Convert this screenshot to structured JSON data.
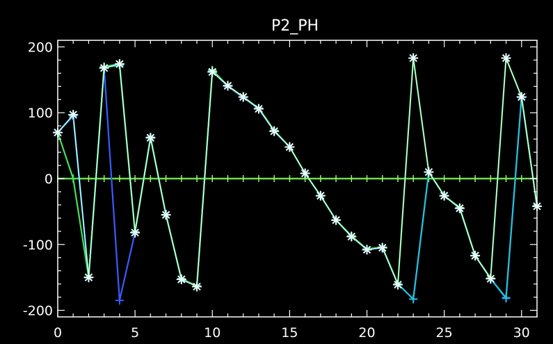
{
  "chart_data": {
    "type": "line",
    "title": "P2_PH",
    "xlabel": "",
    "ylabel": "",
    "xlim": [
      0,
      31
    ],
    "ylim": [
      -210,
      210
    ],
    "x_ticks": [
      0,
      5,
      10,
      15,
      20,
      25,
      30
    ],
    "y_ticks": [
      200,
      100,
      0,
      -100,
      -200
    ],
    "zero_line": true,
    "grid": false,
    "background": "#000000",
    "axis_color": "#ffffff",
    "x": [
      0,
      1,
      2,
      3,
      4,
      5,
      6,
      7,
      8,
      9,
      10,
      11,
      12,
      13,
      14,
      15,
      16,
      17,
      18,
      19,
      20,
      21,
      22,
      23,
      24,
      25,
      26,
      27,
      28,
      29,
      30,
      31
    ],
    "series": [
      {
        "color": "#3a5cff",
        "marker": "plus",
        "values": [
          70,
          95,
          -150,
          168,
          -185,
          -82,
          62,
          -55,
          -153,
          -163,
          163,
          140,
          123,
          106,
          72,
          48,
          8,
          -26,
          -63,
          -88,
          -108,
          -105,
          -160,
          -183,
          10,
          -26,
          -45,
          -117,
          -152,
          -182,
          123,
          -42
        ]
      },
      {
        "color": "#22c4d6",
        "marker": "plus",
        "values": [
          70,
          96,
          -150,
          169,
          172,
          -81,
          63,
          -55,
          -153,
          -163,
          164,
          141,
          124,
          107,
          73,
          48,
          8,
          -26,
          -63,
          -88,
          -107,
          -104,
          -160,
          -183,
          10,
          -26,
          -45,
          -117,
          -152,
          -181,
          124,
          -42
        ]
      },
      {
        "color": "#44e35a",
        "marker": "plus",
        "values": [
          70,
          0,
          -150,
          170,
          174,
          -81,
          62,
          -55,
          -152,
          -163,
          165,
          141,
          124,
          107,
          73,
          48,
          8,
          -26,
          -63,
          -87,
          -107,
          -104,
          -160,
          183,
          10,
          -26,
          -44,
          -117,
          -151,
          183,
          124,
          -42
        ]
      },
      {
        "color": "#e8ffff",
        "marker": "asterisk",
        "values": [
          70,
          97,
          -150,
          168,
          174,
          -82,
          62,
          -55,
          -153,
          -164,
          162,
          141,
          124,
          106,
          72,
          48,
          8,
          -26,
          -63,
          -88,
          -108,
          -105,
          -161,
          183,
          10,
          -26,
          -45,
          -117,
          -152,
          183,
          124,
          -42
        ]
      }
    ]
  }
}
